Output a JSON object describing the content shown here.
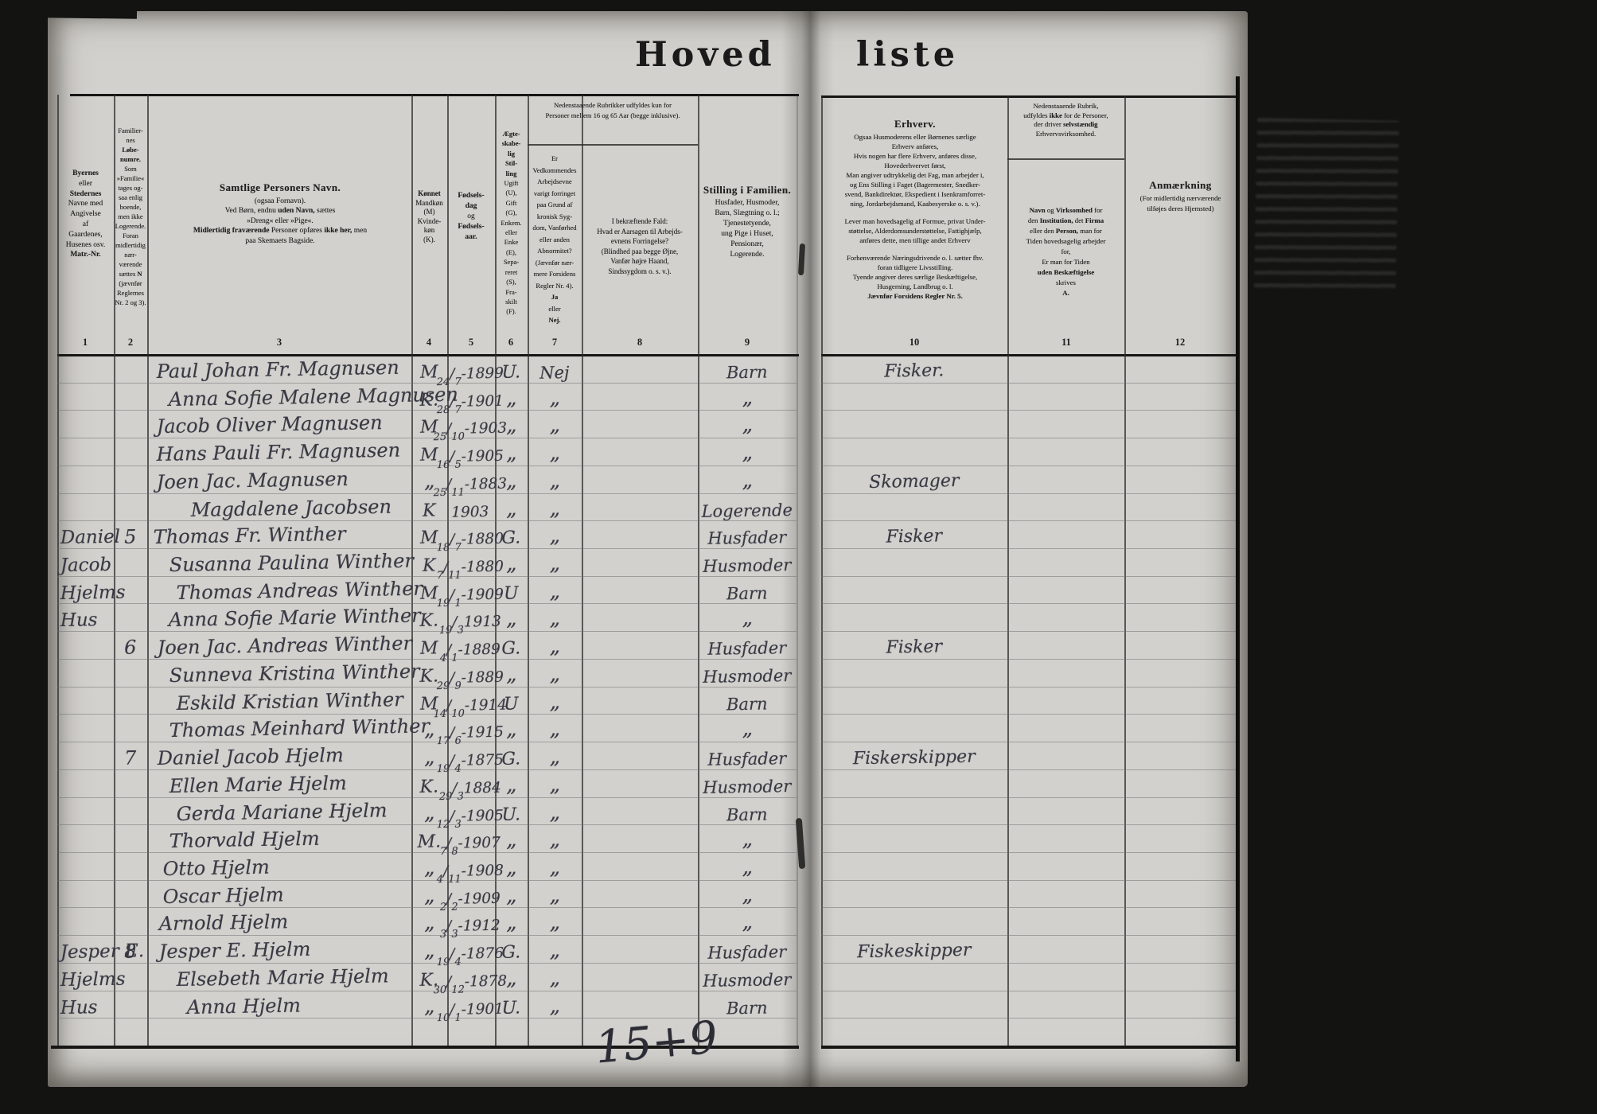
{
  "document": {
    "title_left": "Hoved",
    "title_right": "liste",
    "bottom_annotation": "15+9",
    "column_numbers": [
      "1",
      "2",
      "3",
      "4",
      "5",
      "6",
      "7",
      "8",
      "9",
      "10",
      "11",
      "12"
    ]
  },
  "headers": {
    "col1_place": [
      "**Byernes**",
      "eller",
      "**Stedernes**",
      "Navne med",
      "Angivelse",
      "af",
      "Gaardenes,",
      "Husenes osv.",
      "**Matr.-Nr.**"
    ],
    "col2_family_number": [
      "Familier-",
      "nes",
      "**Løbe-**",
      "**numre.**",
      "Som",
      "»Familie«",
      "tages og-",
      "saa enlig",
      "boende,",
      "men ikke",
      "Logerende.",
      "Foran",
      "midlertidig",
      "nær-",
      "værende",
      "sættes **N**",
      "(jævnfør",
      "Reglernes",
      "Nr. 2 og 3)."
    ],
    "col3_names": [
      {
        "t": "**Samtlige Personers Navn.**",
        "big": true
      },
      "(ogsaa Fornavn).",
      "Ved Børn, endnu **uden Navn,** sættes",
      "»Dreng« eller »Pige«.",
      "**Midlertidig fraværende** Personer opføres **ikke her,** men",
      "paa Skemaets Bagside."
    ],
    "col4_sex": [
      "**Kønnet**",
      "Mandkøn",
      "(M)",
      "Kvinde-",
      "køn",
      "(K)."
    ],
    "col5_birth": [
      "**Fødsels-**",
      "**dag**",
      "og",
      "**Fødsels-**",
      "**aar.**"
    ],
    "col6_marital": [
      "**Ægte-**",
      "**skabe-**",
      "**lig**",
      "**Stil-**",
      "**ling**",
      "Ugift",
      "(U),",
      "Gift",
      "(G),",
      "Enkem.",
      "eller",
      "Enke",
      "(E),",
      "Sepa-",
      "reret",
      "(S),",
      "Fra-",
      "skilt",
      "(F)."
    ],
    "note_cols7_8": [
      "Nedenstaaende Rubrikker udfyldes kun for",
      "Personer mellem 16 og 65 Aar (begge inklusive)."
    ],
    "col7_ability": [
      "Er",
      "Vedkommendes",
      "Arbejdsevne",
      "varigt forringet",
      "paa Grund af",
      "kronisk Syg-",
      "dom, Vanførhed",
      "eller anden",
      "Abnormitet?",
      "(Jævnfør nær-",
      "mere Forsidens",
      "Regler Nr. 4).",
      "**Ja**",
      "eller",
      "**Nej.**"
    ],
    "col8_cause": [
      "I bekræftende Fald:",
      "Hvad er Aarsagen til Arbejds-",
      "evnens Forringelse?",
      "(Blindhed paa begge Øjne,",
      "Vanfør højre Haand,",
      "Sindssygdom o. s. v.)."
    ],
    "col9_position": [
      {
        "t": "**Stilling i Familien.**",
        "big": true
      },
      "Husfader, Husmoder,",
      "Barn, Slægtning o. l.;",
      "Tjenestetyende,",
      "ung Pige i Huset,",
      "Pensionær,",
      "Logerende."
    ],
    "col10_occupation": [
      {
        "t": "**Erhverv.**",
        "big": true
      },
      "Ogsaa Husmoderens eller Børnenes særlige",
      "Erhverv anføres,",
      "Hvis nogen har flere Erhverv, anføres disse,",
      "Hovederhvervet først,",
      "Man angiver udtrykkelig det Fag, man arbejder i,",
      "og Ens Stilling i Faget (Bagermester, Snedker-",
      "svend, Bankdirektør, Ekspedient i Isenkramforret-",
      "ning, Jordarbejdsmand, Kaabesyerske o. s. v.).",
      {
        "gap": true
      },
      "Lever man hovedsagelig af Formue, privat Under-",
      "støttelse, Alderdomsunderstøttelse, Fattighjælp,",
      "anføres dette, men tillige andet Erhverv",
      {
        "gap": true
      },
      "Forhenværende Næringsdrivende o. l. sætter fhv.",
      "foran tidligere Livsstilling.",
      "Tyende angiver deres særlige Beskæftigelse,",
      "Husgerning, Landbrug o. l.",
      "**Jævnfør Forsidens Regler Nr. 5.**"
    ],
    "col11_note": [
      "Nedenstaaende Rubrik,",
      "udfyldes **ikke** for de Personer,",
      "der driver **selvstændig**",
      "Erhvervsvirksomhed."
    ],
    "col11_employer": [
      "**Navn** og **Virksomhed** for",
      "den **Institution,** det **Firma**",
      "eller den **Person,** man for",
      "Tiden hovedsagelig arbejder",
      "for,",
      "Er man for Tiden",
      "**uden Beskæftigelse**",
      "skrives",
      "**A.**"
    ],
    "col12_remarks": [
      {
        "t": "**Anmærkning**",
        "big": true
      },
      "(For midlertidig nærværende",
      "tilføjes deres Hjemsted)"
    ]
  },
  "rows": [
    {
      "name": "Paul Johan Fr. Magnusen",
      "nx": 197,
      "sex": "M",
      "birth": "24/7-1899",
      "marital": "U.",
      "able": "Nej",
      "pos": "Barn",
      "occ": "Fisker."
    },
    {
      "name": "Anna Sofie Malene Magnusen",
      "nx": 212,
      "sex": "K.",
      "birth": "28/7-1901",
      "marital": "„",
      "able": "„",
      "pos": "„"
    },
    {
      "name": "Jacob Oliver Magnusen",
      "nx": 197,
      "sex": "M",
      "birth": "25/10-1903",
      "marital": "„",
      "able": "„",
      "pos": "„"
    },
    {
      "name": "Hans Pauli Fr. Magnusen",
      "nx": 197,
      "sex": "M",
      "birth": "16/5-1905",
      "marital": "„",
      "able": "„",
      "pos": "„"
    },
    {
      "name": "Joen Jac. Magnusen",
      "nx": 197,
      "sex": "„",
      "birth": "25/11-1883",
      "marital": "„",
      "able": "„",
      "pos": "„",
      "occ": "Skomager"
    },
    {
      "name": "Magdalene Jacobsen",
      "nx": 240,
      "sex": "K",
      "birth": "1903",
      "marital": "„",
      "able": "„",
      "pos": "Logerende"
    },
    {
      "place": "Daniel",
      "fam": "5",
      "name": "Thomas Fr. Winther",
      "nx": 193,
      "sex": "M",
      "birth": "18/7-1880",
      "marital": "G.",
      "able": "„",
      "pos": "Husfader",
      "occ": "Fisker"
    },
    {
      "place": "Jacob",
      "name": "Susanna Paulina Winther",
      "nx": 213,
      "sex": "K",
      "birth": "7/11-1880",
      "marital": "„",
      "able": "„",
      "pos": "Husmoder"
    },
    {
      "place": "Hjelms",
      "name": "Thomas Andreas Winther",
      "nx": 222,
      "sex": "M",
      "birth": "19/1-1909",
      "marital": "U",
      "able": "„",
      "pos": "Barn"
    },
    {
      "place": "Hus",
      "name": "Anna Sofie Marie Winther",
      "nx": 212,
      "sex": "K.",
      "birth": "19/3 1913",
      "marital": "„",
      "able": "„",
      "pos": "„"
    },
    {
      "fam": "6",
      "name": "Joen Jac. Andreas Winther",
      "nx": 198,
      "sex": "M",
      "birth": "4/1-1889",
      "marital": "G.",
      "able": "„",
      "pos": "Husfader",
      "occ": "Fisker"
    },
    {
      "name": "Sunneva Kristina Winther",
      "nx": 213,
      "sex": "K.",
      "birth": "29/9-1889",
      "marital": "„",
      "able": "„",
      "pos": "Husmoder"
    },
    {
      "name": "Eskild Kristian Winther",
      "nx": 222,
      "sex": "M",
      "birth": "14/10-1914",
      "marital": "U",
      "able": "„",
      "pos": "Barn"
    },
    {
      "name": "Thomas Meinhard Winther",
      "nx": 213,
      "sex": "„",
      "birth": "17/6-1915",
      "marital": "„",
      "able": "„",
      "pos": "„"
    },
    {
      "fam": "7",
      "name": "Daniel Jacob Hjelm",
      "nx": 198,
      "sex": "„",
      "birth": "19/4-1875",
      "marital": "G.",
      "able": "„",
      "pos": "Husfader",
      "occ": "Fiskerskipper"
    },
    {
      "name": "Ellen Marie Hjelm",
      "nx": 213,
      "sex": "K.",
      "birth": "29/3 1884",
      "marital": "„",
      "able": "„",
      "pos": "Husmoder"
    },
    {
      "name": "Gerda Mariane Hjelm",
      "nx": 222,
      "sex": "„",
      "birth": "12/3-1905",
      "marital": "U.",
      "able": "„",
      "pos": "Barn"
    },
    {
      "name": "Thorvald Hjelm",
      "nx": 213,
      "sex": "M.",
      "birth": "7/8-1907",
      "marital": "„",
      "able": "„",
      "pos": "„"
    },
    {
      "name": "Otto Hjelm",
      "nx": 205,
      "sex": "„",
      "birth": "4/11-1908",
      "marital": "„",
      "able": "„",
      "pos": "„"
    },
    {
      "name": "Oscar Hjelm",
      "nx": 205,
      "sex": "„",
      "birth": "2/2-1909",
      "marital": "„",
      "able": "„",
      "pos": "„"
    },
    {
      "name": "Arnold Hjelm",
      "nx": 200,
      "sex": "„",
      "birth": "3/3-1912",
      "marital": "„",
      "able": "„",
      "pos": "„"
    },
    {
      "place": "Jesper E.",
      "fam": "8",
      "name": "Jesper E. Hjelm",
      "nx": 200,
      "sex": "„",
      "birth": "19/4-1876",
      "marital": "G.",
      "able": "„",
      "pos": "Husfader",
      "occ": "Fiskeskipper"
    },
    {
      "place": "Hjelms",
      "name": "Elsebeth Marie Hjelm",
      "nx": 222,
      "sex": "K.",
      "birth": "30/12-1878",
      "marital": "„",
      "able": "„",
      "pos": "Husmoder"
    },
    {
      "place": "Hus",
      "name": "Anna Hjelm",
      "nx": 235,
      "sex": "„",
      "birth": "10/1-1901",
      "marital": "U.",
      "able": "„",
      "pos": "Barn"
    }
  ]
}
